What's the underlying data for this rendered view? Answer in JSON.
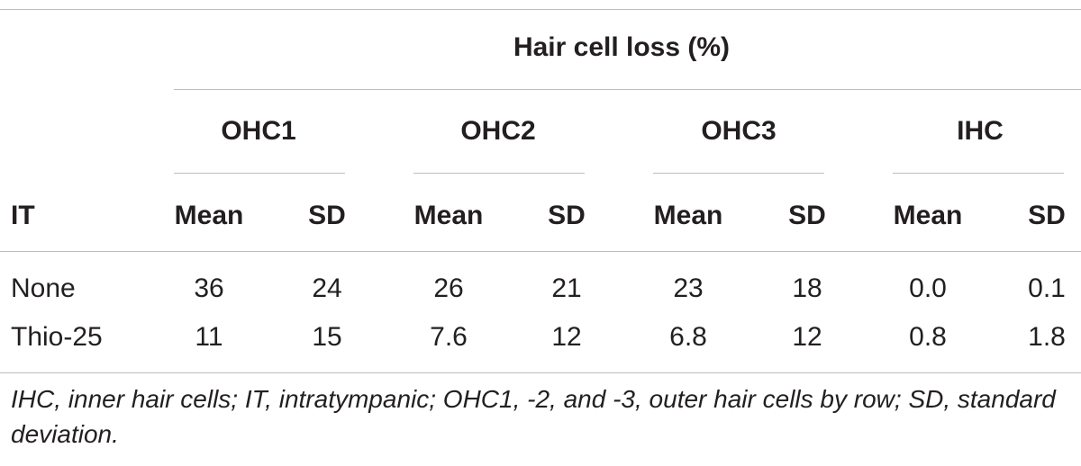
{
  "table": {
    "super_header": "Hair cell loss (%)",
    "groups": [
      "OHC1",
      "OHC2",
      "OHC3",
      "IHC"
    ],
    "row_header": "IT",
    "subheaders": [
      "Mean",
      "SD",
      "Mean",
      "SD",
      "Mean",
      "SD",
      "Mean",
      "SD"
    ],
    "rows": [
      {
        "label": "None",
        "values": [
          "36",
          "24",
          "26",
          "21",
          "23",
          "18",
          "0.0",
          "0.1"
        ]
      },
      {
        "label": "Thio-25",
        "values": [
          "11",
          "15",
          "7.6",
          "12",
          "6.8",
          "12",
          "0.8",
          "1.8"
        ]
      }
    ],
    "footnote": "IHC, inner hair cells; IT, intratympanic; OHC1, -2, and -3, outer hair cells by row; SD, standard deviation."
  }
}
